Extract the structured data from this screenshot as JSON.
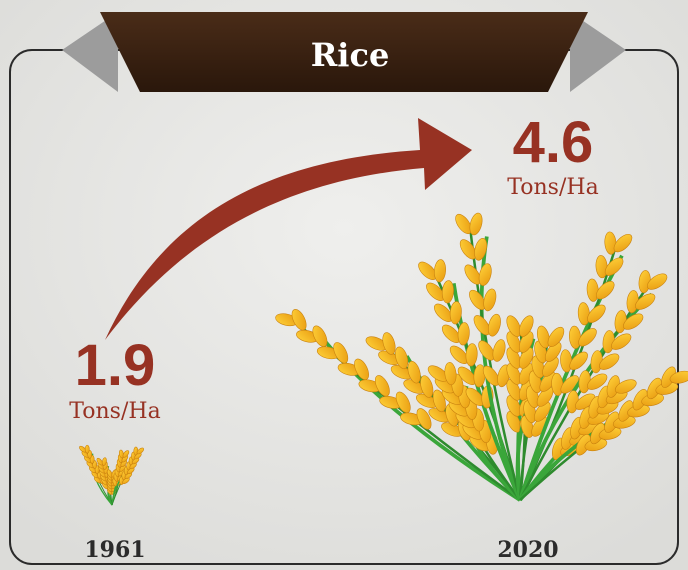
{
  "title": "Rice",
  "items": [
    {
      "year": "1961",
      "value": 1.9,
      "unit": "Tons/Ha"
    },
    {
      "year": "2020",
      "value": 4.6,
      "unit": "Tons/Ha"
    }
  ]
}
